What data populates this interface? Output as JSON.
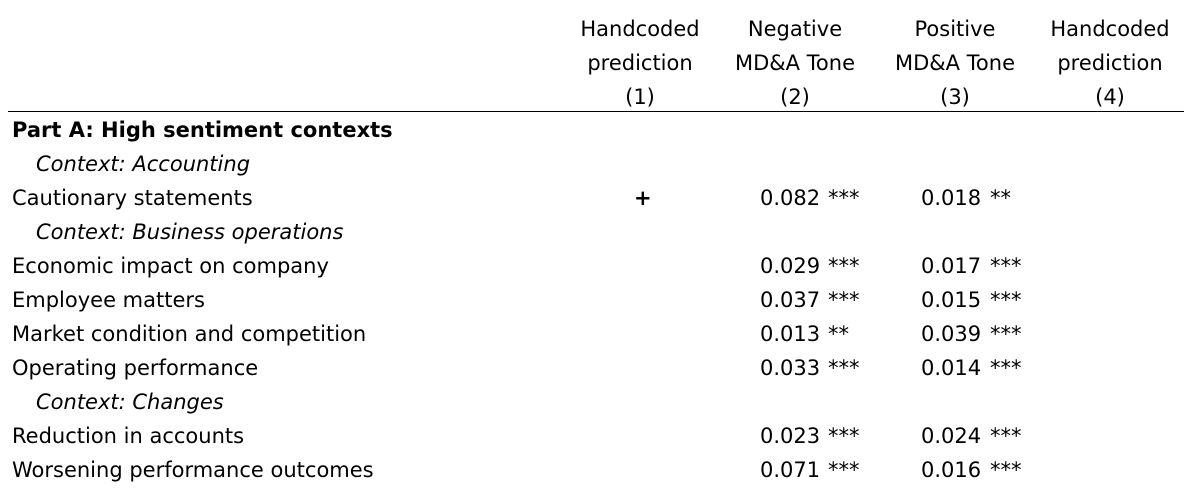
{
  "columns": [
    {
      "line1": "Handcoded",
      "line2": "prediction",
      "line3": "(1)"
    },
    {
      "line1": "Negative",
      "line2": "MD&A Tone",
      "line3": "(2)"
    },
    {
      "line1": "Positive",
      "line2": "MD&A Tone",
      "line3": "(3)"
    },
    {
      "line1": "Handcoded",
      "line2": "prediction",
      "line3": "(4)"
    }
  ],
  "rows": [
    {
      "label": "Part A: High sentiment contexts"
    },
    {
      "label": "Context: Accounting"
    },
    {
      "label": "Cautionary statements",
      "prediction": "+",
      "neg_value": "0.082",
      "neg_stars": "***",
      "pos_value": "0.018",
      "pos_stars": "**"
    },
    {
      "label": "Context: Business operations"
    },
    {
      "label": "Economic impact on company",
      "neg_value": "0.029",
      "neg_stars": "***",
      "pos_value": "0.017",
      "pos_stars": "***"
    },
    {
      "label": "Employee matters",
      "neg_value": "0.037",
      "neg_stars": "***",
      "pos_value": "0.015",
      "pos_stars": "***"
    },
    {
      "label": "Market condition and competition",
      "neg_value": "0.013",
      "neg_stars": "**",
      "pos_value": "0.039",
      "pos_stars": "***"
    },
    {
      "label": "Operating performance",
      "neg_value": "0.033",
      "neg_stars": "***",
      "pos_value": "0.014",
      "pos_stars": "***"
    },
    {
      "label": "Context: Changes"
    },
    {
      "label": "Reduction in accounts",
      "neg_value": "0.023",
      "neg_stars": "***",
      "pos_value": "0.024",
      "pos_stars": "***"
    },
    {
      "label": "Worsening performance outcomes",
      "neg_value": "0.071",
      "neg_stars": "***",
      "pos_value": "0.016",
      "pos_stars": "***"
    }
  ]
}
